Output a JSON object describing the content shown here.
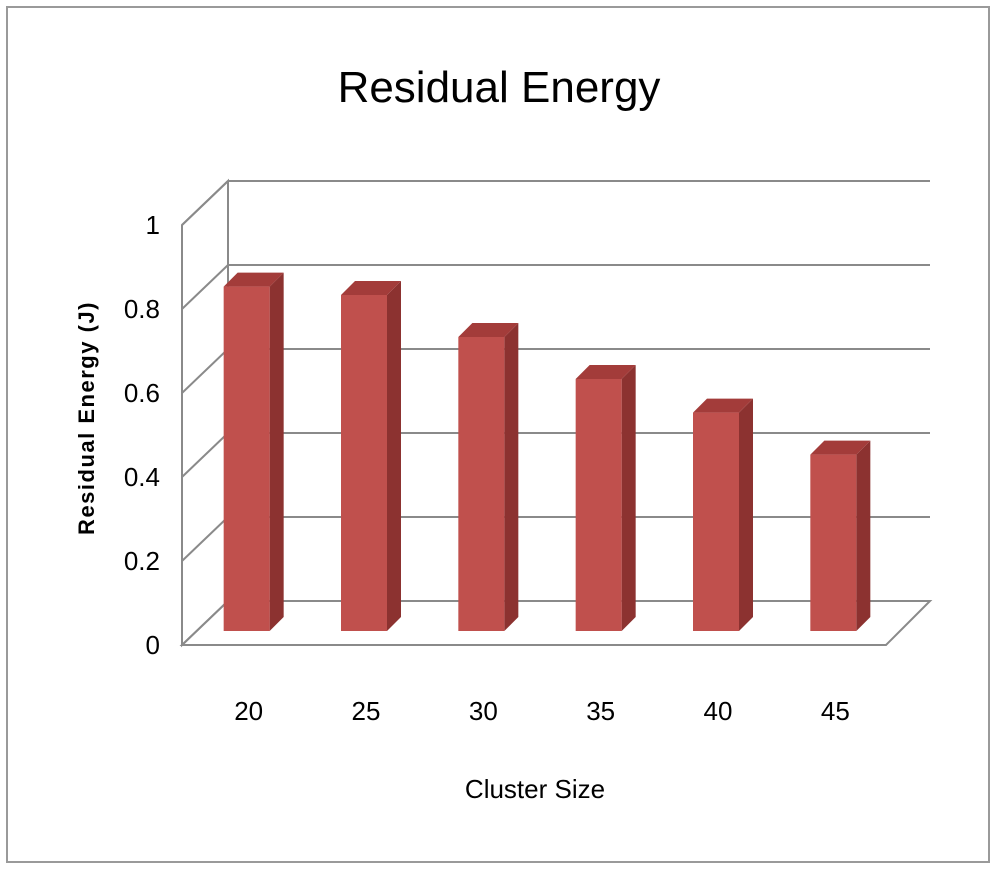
{
  "chart_data": {
    "type": "bar",
    "title": "Residual Energy",
    "xlabel": "Cluster Size",
    "ylabel": "Residual Energy (J)",
    "categories": [
      "20",
      "25",
      "30",
      "35",
      "40",
      "45"
    ],
    "values": [
      0.82,
      0.8,
      0.7,
      0.6,
      0.52,
      0.42
    ],
    "ylim": [
      0,
      1
    ],
    "yticks": [
      "0",
      "0.2",
      "0.4",
      "0.6",
      "0.8",
      "1"
    ],
    "grid": true,
    "legend": "none",
    "style": "3d-column",
    "colors": {
      "bar_front": "#c0504d",
      "bar_side": "#8c3230",
      "bar_top": "#a33c3a",
      "grid": "#8a8a8a"
    }
  }
}
